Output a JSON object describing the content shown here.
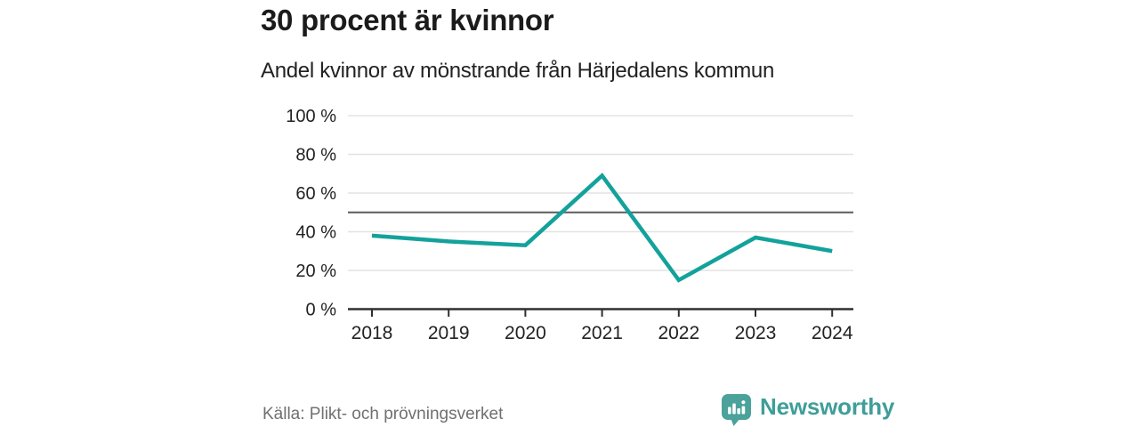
{
  "header": {
    "title": "30 procent är kvinnor",
    "subtitle": "Andel kvinnor av mönstrande från Härjedalens kommun"
  },
  "chart_data": {
    "type": "line",
    "title": "30 procent är kvinnor",
    "subtitle": "Andel kvinnor av mönstrande från Härjedalens kommun",
    "x": [
      2018,
      2019,
      2020,
      2021,
      2022,
      2023,
      2024
    ],
    "series": [
      {
        "name": "Andel kvinnor av mönstrande",
        "values": [
          38,
          35,
          33,
          69,
          15,
          37,
          30
        ]
      }
    ],
    "unit": "%",
    "ylim": [
      0,
      100
    ],
    "yticks": [
      0,
      20,
      40,
      60,
      80,
      100
    ],
    "ytick_suffix": " %",
    "reference_line": 50,
    "grid": "horizontal",
    "legend": "none",
    "colors": {
      "line": "#13a29b",
      "grid": "#e3e3e3",
      "reference_line": "#5a5b5e",
      "axis": "#2f2f2f",
      "tick_label": "#222222"
    }
  },
  "footer": {
    "source": "Källa: Plikt- och prövningsverket",
    "brand": "Newsworthy",
    "logo_icon": "bar-chart-speech-bubble-icon",
    "brand_color": "#3f9e98",
    "logo_fill": "#4aa29b"
  }
}
